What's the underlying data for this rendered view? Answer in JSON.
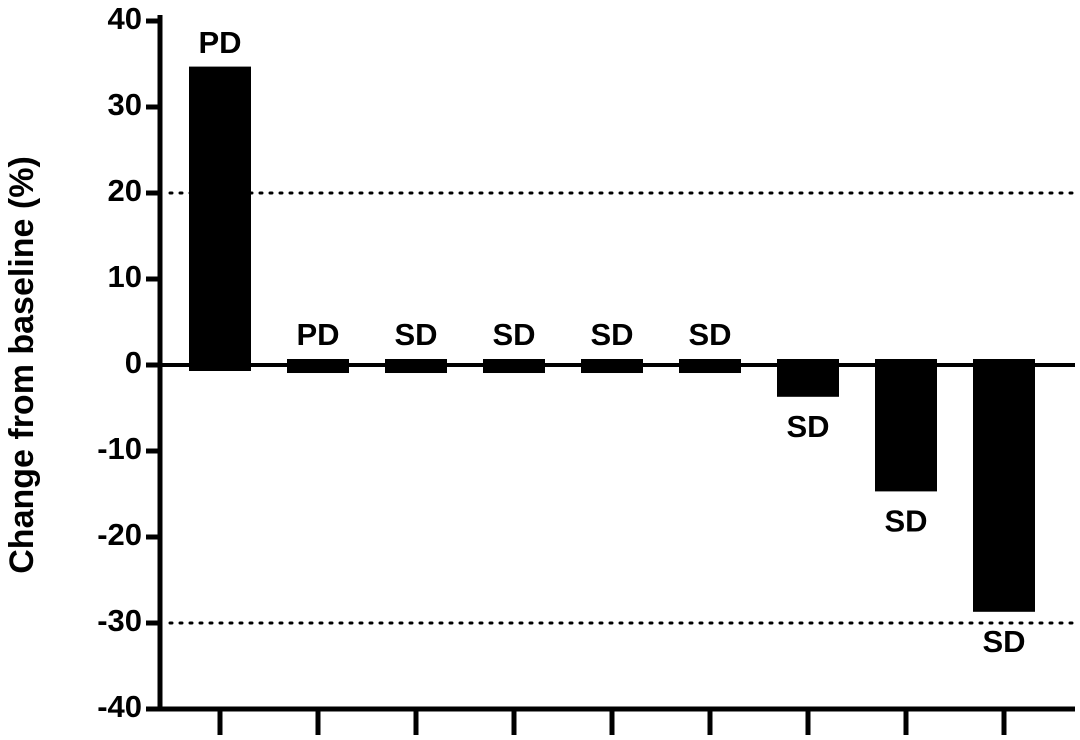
{
  "chart_data": {
    "type": "bar",
    "y_label": "Change from baseline (%)",
    "categories": [
      null,
      null,
      null,
      null,
      null,
      null,
      null,
      null,
      null
    ],
    "values": [
      34,
      0,
      0,
      0,
      0,
      0,
      -3,
      -14,
      -28
    ],
    "annotations": [
      "PD",
      "PD",
      "SD",
      "SD",
      "SD",
      "SD",
      "SD",
      "SD",
      "SD"
    ],
    "color": "#000000",
    "ylim": [
      -40,
      40
    ],
    "yticks": [
      -40,
      -30,
      -20,
      -10,
      0,
      10,
      20,
      30,
      40
    ],
    "reference_lines": [
      20,
      -30
    ]
  }
}
